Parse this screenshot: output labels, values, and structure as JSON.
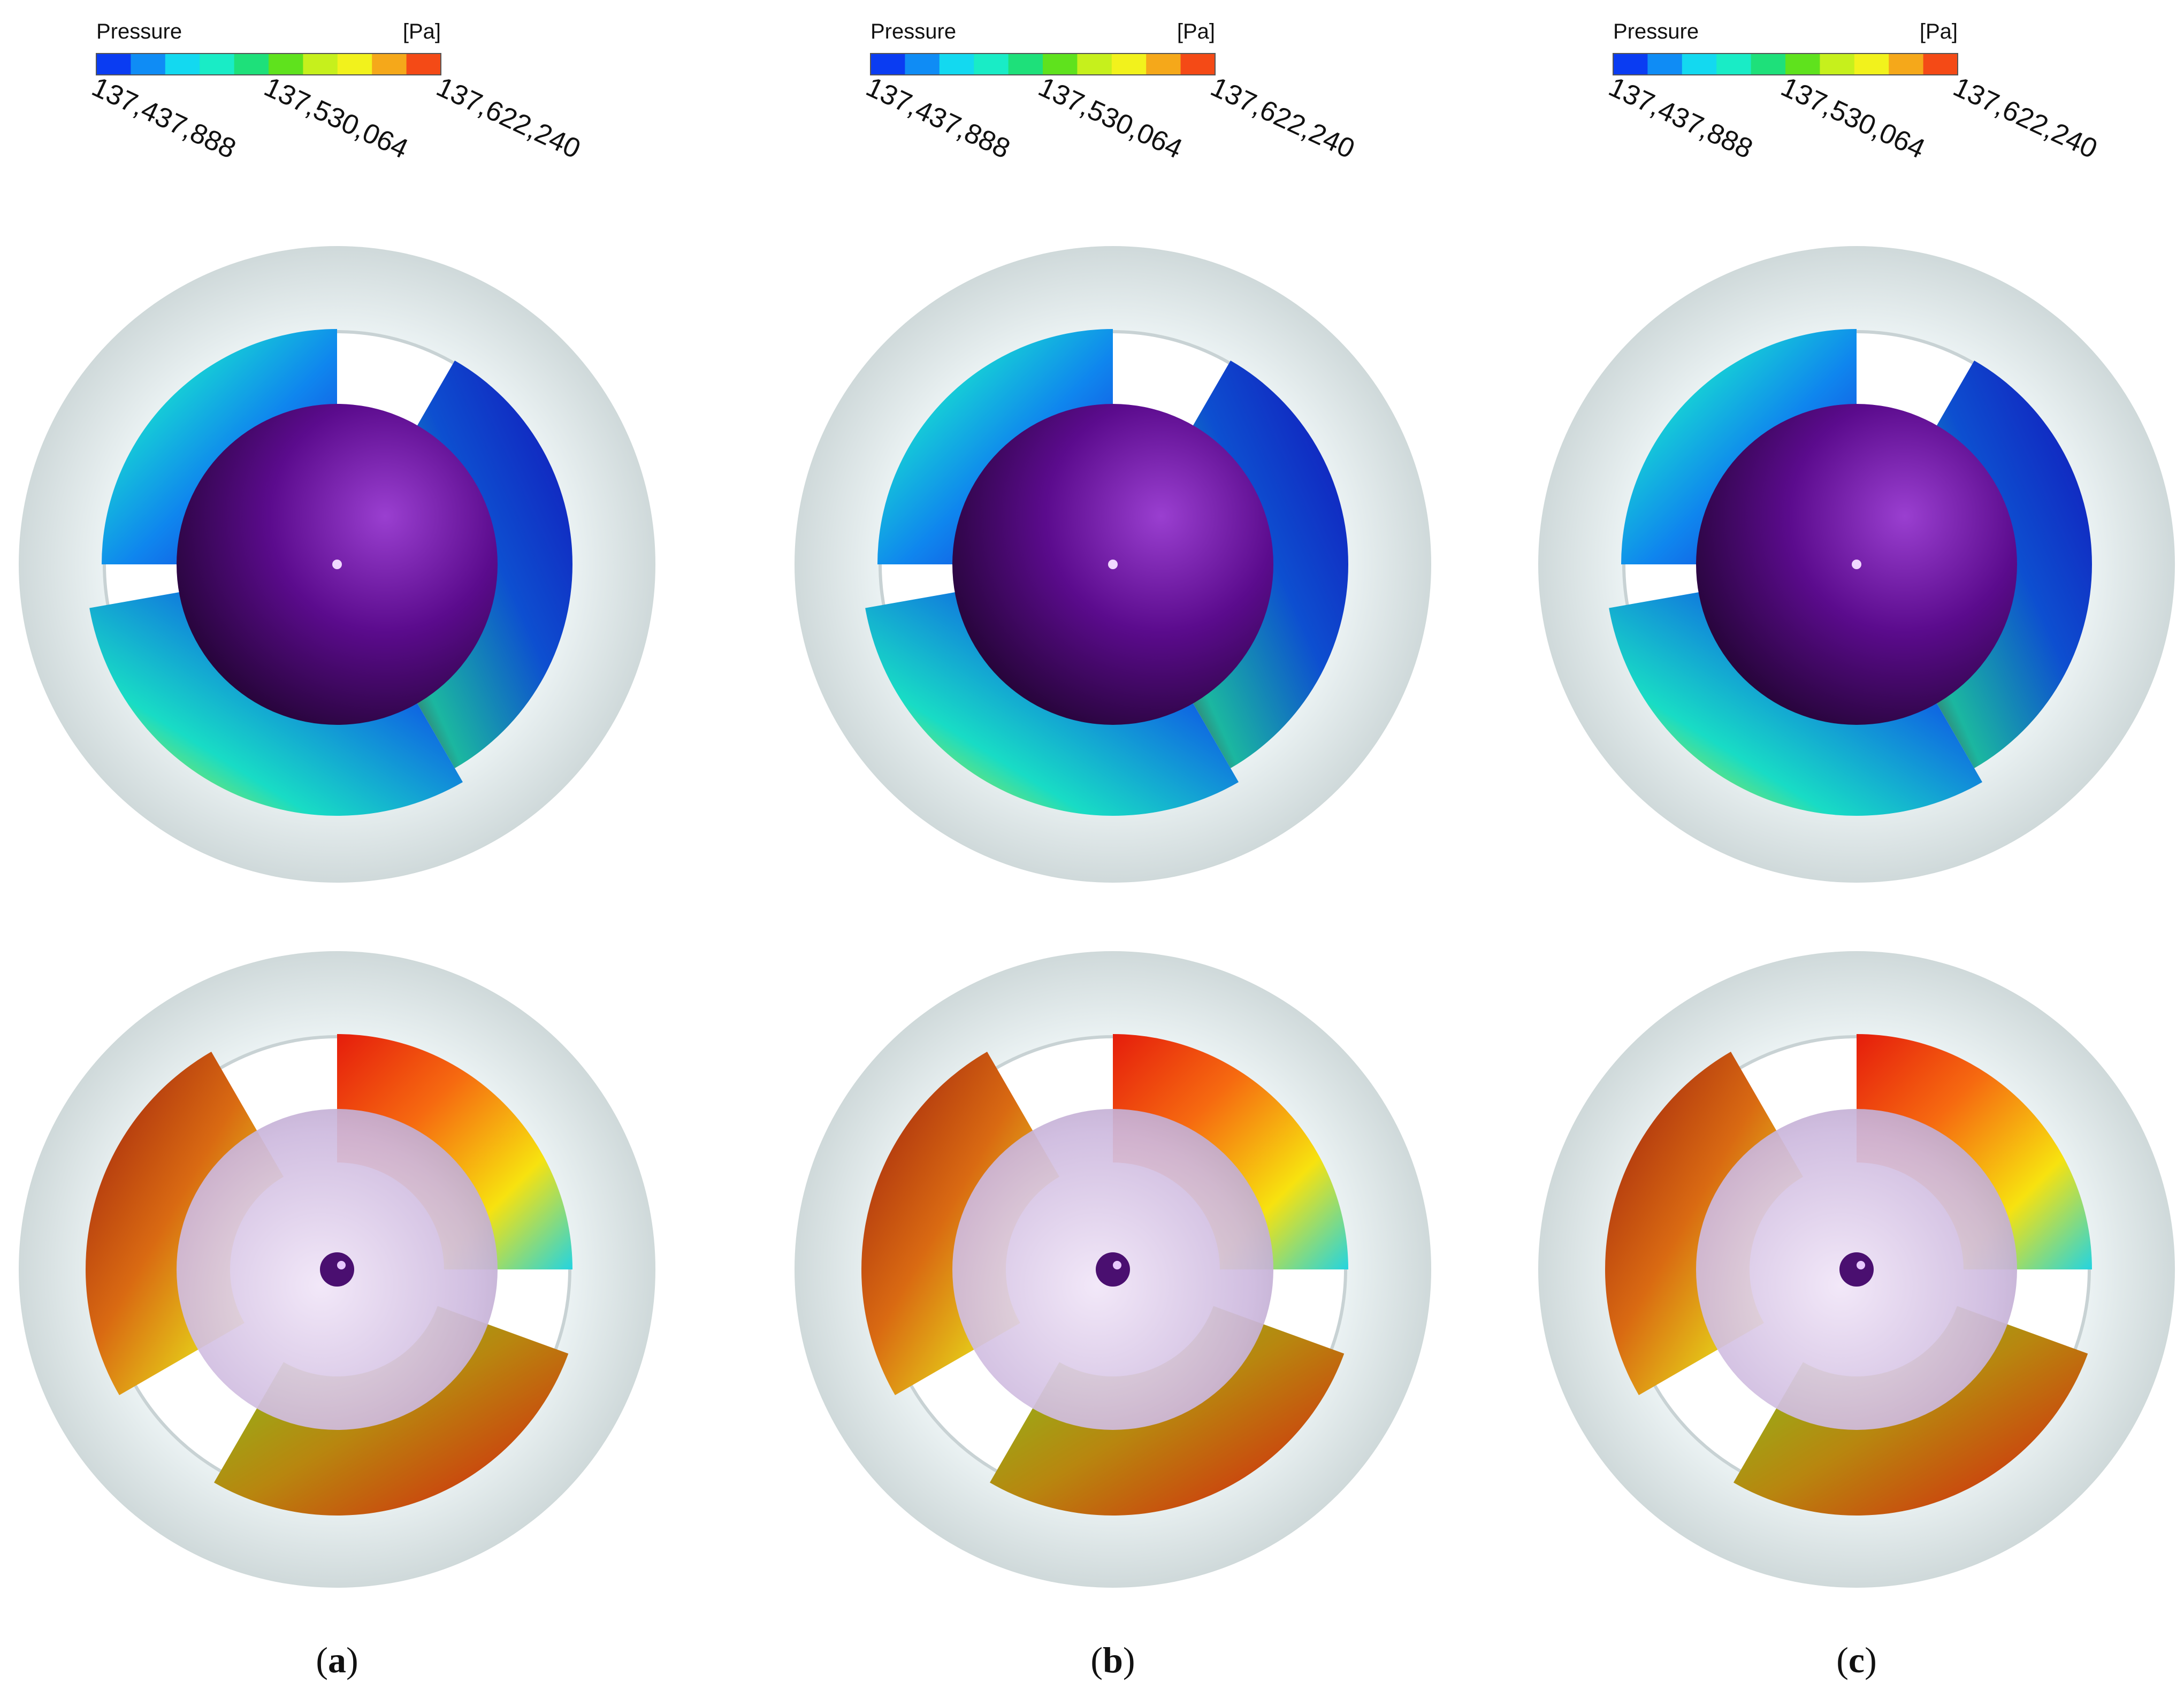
{
  "legend": {
    "title": "Pressure",
    "unit": "[Pa]",
    "tick_labels": [
      "137,437,888",
      "137,530,064",
      "137,622,240"
    ],
    "colors": [
      "#0a3cf2",
      "#0f8cf5",
      "#13d9f0",
      "#19ecc6",
      "#1ee07a",
      "#5fe21d",
      "#c6f01c",
      "#f2f21c",
      "#f5a81a",
      "#f44a16"
    ]
  },
  "panels": [
    {
      "label": "(a)",
      "label_letter": "a"
    },
    {
      "label": "(b)",
      "label_letter": "b"
    },
    {
      "label": "(c)",
      "label_letter": "c"
    }
  ],
  "colors": {
    "casing": "#d8e1e2",
    "hub_top": "#5a0a8a",
    "hub_bottom": "#c9b5dd",
    "low_pressure": "#1a22d8",
    "high_pressure": "#e8240f"
  }
}
